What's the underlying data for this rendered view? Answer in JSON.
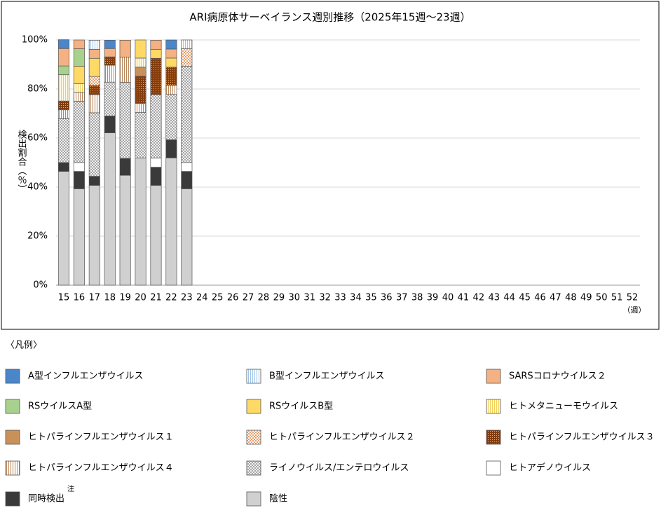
{
  "chart_data": {
    "type": "stacked_bar",
    "title": "ARI病原体サーベイランス週別推移（2025年15週～23週）",
    "y_label": "検出割合（％）",
    "x_unit": "（週）",
    "legend_title": "〈凡例〉",
    "legend_note": "注",
    "categories": [
      "15",
      "16",
      "17",
      "18",
      "19",
      "20",
      "21",
      "22",
      "23",
      "24",
      "25",
      "26",
      "27",
      "28",
      "29",
      "30",
      "31",
      "32",
      "33",
      "34",
      "35",
      "36",
      "37",
      "38",
      "39",
      "40",
      "41",
      "42",
      "43",
      "44",
      "45",
      "46",
      "47",
      "48",
      "49",
      "50",
      "51",
      "52"
    ],
    "ylim": [
      0,
      100
    ],
    "yticks": [
      {
        "value": 0,
        "label": "0%"
      },
      {
        "value": 20,
        "label": "20%"
      },
      {
        "value": 40,
        "label": "40%"
      },
      {
        "value": 60,
        "label": "60%"
      },
      {
        "value": 80,
        "label": "80%"
      },
      {
        "value": 100,
        "label": "100%"
      }
    ],
    "grid": true,
    "series": [
      {
        "name": "A型インフルエンザウイルス",
        "color": "#4a86c8",
        "pattern": "solid",
        "values": [
          3.6,
          null,
          null,
          3.4,
          null,
          null,
          null,
          3.7,
          null,
          null,
          null,
          null,
          null,
          null,
          null,
          null,
          null,
          null,
          null,
          null,
          null,
          null,
          null,
          null,
          null,
          null,
          null,
          null,
          null,
          null,
          null,
          null,
          null,
          null,
          null,
          null,
          null,
          null
        ]
      },
      {
        "name": "B型インフルエンザウイルス",
        "color": "#ffffff",
        "pattern": "vlines",
        "pattern_color": "#9dc3e6",
        "values": [
          null,
          null,
          3.7,
          null,
          null,
          null,
          null,
          null,
          3.6,
          null,
          null,
          null,
          null,
          null,
          null,
          null,
          null,
          null,
          null,
          null,
          null,
          null,
          null,
          null,
          null,
          null,
          null,
          null,
          null,
          null,
          null,
          null,
          null,
          null,
          null,
          null,
          null,
          null
        ]
      },
      {
        "name": "SARSコロナウイルス２",
        "color": "#f4b183",
        "pattern": "solid",
        "values": [
          7.1,
          3.6,
          3.7,
          3.4,
          6.9,
          null,
          3.7,
          3.7,
          null,
          null,
          null,
          null,
          null,
          null,
          null,
          null,
          null,
          null,
          null,
          null,
          null,
          null,
          null,
          null,
          null,
          null,
          null,
          null,
          null,
          null,
          null,
          null,
          null,
          null,
          null,
          null,
          null,
          null
        ]
      },
      {
        "name": "RSウイルスA型",
        "color": "#a9d18e",
        "pattern": "solid",
        "values": [
          3.6,
          7.1,
          null,
          null,
          null,
          null,
          null,
          null,
          null,
          null,
          null,
          null,
          null,
          null,
          null,
          null,
          null,
          null,
          null,
          null,
          null,
          null,
          null,
          null,
          null,
          null,
          null,
          null,
          null,
          null,
          null,
          null,
          null,
          null,
          null,
          null,
          null,
          null
        ]
      },
      {
        "name": "RSウイルスB型",
        "color": "#ffd966",
        "pattern": "solid",
        "values": [
          null,
          7.1,
          7.4,
          null,
          null,
          7.4,
          3.7,
          3.7,
          null,
          null,
          null,
          null,
          null,
          null,
          null,
          null,
          null,
          null,
          null,
          null,
          null,
          null,
          null,
          null,
          null,
          null,
          null,
          null,
          null,
          null,
          null,
          null,
          null,
          null,
          null,
          null,
          null,
          null
        ]
      },
      {
        "name": "ヒトメタニューモウイルス",
        "color": "#fff8dc",
        "pattern": "vlines",
        "pattern_color": "#f2cf5b",
        "values": [
          10.7,
          3.6,
          null,
          null,
          null,
          3.7,
          null,
          null,
          null,
          null,
          null,
          null,
          null,
          null,
          null,
          null,
          null,
          null,
          null,
          null,
          null,
          null,
          null,
          null,
          null,
          null,
          null,
          null,
          null,
          null,
          null,
          null,
          null,
          null,
          null,
          null,
          null,
          null
        ]
      },
      {
        "name": "ヒトパラインフルエンザウイルス１",
        "color": "#c9915a",
        "pattern": "solid",
        "values": [
          null,
          null,
          null,
          null,
          null,
          3.7,
          null,
          null,
          null,
          null,
          null,
          null,
          null,
          null,
          null,
          null,
          null,
          null,
          null,
          null,
          null,
          null,
          null,
          null,
          null,
          null,
          null,
          null,
          null,
          null,
          null,
          null,
          null,
          null,
          null,
          null,
          null,
          null
        ]
      },
      {
        "name": "ヒトパラインフルエンザウイルス２",
        "color": "#ffffff",
        "pattern": "checker",
        "pattern_color": "#e8a070",
        "values": [
          null,
          null,
          3.7,
          null,
          null,
          null,
          null,
          null,
          7.1,
          null,
          null,
          null,
          null,
          null,
          null,
          null,
          null,
          null,
          null,
          null,
          null,
          null,
          null,
          null,
          null,
          null,
          null,
          null,
          null,
          null,
          null,
          null,
          null,
          null,
          null,
          null,
          null,
          null
        ]
      },
      {
        "name": "ヒトパラインフルエンザウイルス３",
        "color": "#843c0c",
        "pattern": "dots",
        "pattern_color": "#f4a460",
        "values": [
          3.6,
          null,
          3.7,
          3.4,
          null,
          11.1,
          14.8,
          7.4,
          null,
          null,
          null,
          null,
          null,
          null,
          null,
          null,
          null,
          null,
          null,
          null,
          null,
          null,
          null,
          null,
          null,
          null,
          null,
          null,
          null,
          null,
          null,
          null,
          null,
          null,
          null,
          null,
          null,
          null
        ]
      },
      {
        "name": "ヒトパラインフルエンザウイルス４",
        "color": "#ffffff",
        "pattern": "vlines",
        "pattern_color": "#b8865b",
        "values": [
          3.6,
          3.6,
          7.4,
          6.9,
          10.3,
          3.7,
          null,
          3.7,
          null,
          null,
          null,
          null,
          null,
          null,
          null,
          null,
          null,
          null,
          null,
          null,
          null,
          null,
          null,
          null,
          null,
          null,
          null,
          null,
          null,
          null,
          null,
          null,
          null,
          null,
          null,
          null,
          null,
          null
        ]
      },
      {
        "name": "ライノウイルス/エンテロウイルス",
        "color": "#ffffff",
        "pattern": "cross",
        "pattern_color": "#888888",
        "values": [
          17.9,
          25,
          25.9,
          13.8,
          31.0,
          18.5,
          25.9,
          18.5,
          39.3,
          null,
          null,
          null,
          null,
          null,
          null,
          null,
          null,
          null,
          null,
          null,
          null,
          null,
          null,
          null,
          null,
          null,
          null,
          null,
          null,
          null,
          null,
          null,
          null,
          null,
          null,
          null,
          null,
          null
        ]
      },
      {
        "name": "ヒトアデノウイルス",
        "color": "#ffffff",
        "pattern": "solid",
        "values": [
          null,
          3.6,
          null,
          null,
          null,
          null,
          3.7,
          null,
          3.6,
          null,
          null,
          null,
          null,
          null,
          null,
          null,
          null,
          null,
          null,
          null,
          null,
          null,
          null,
          null,
          null,
          null,
          null,
          null,
          null,
          null,
          null,
          null,
          null,
          null,
          null,
          null,
          null,
          null
        ]
      },
      {
        "name": "同時検出",
        "color": "#3a3a3a",
        "pattern": "solid",
        "values": [
          3.6,
          7.1,
          3.7,
          6.9,
          6.9,
          null,
          7.4,
          7.4,
          7.1,
          null,
          null,
          null,
          null,
          null,
          null,
          null,
          null,
          null,
          null,
          null,
          null,
          null,
          null,
          null,
          null,
          null,
          null,
          null,
          null,
          null,
          null,
          null,
          null,
          null,
          null,
          null,
          null,
          null
        ]
      },
      {
        "name": "陰性",
        "color": "#d0d0d0",
        "pattern": "solid",
        "values": [
          46.4,
          39.3,
          40.7,
          62.1,
          44.8,
          51.9,
          40.7,
          51.9,
          39.3,
          null,
          null,
          null,
          null,
          null,
          null,
          null,
          null,
          null,
          null,
          null,
          null,
          null,
          null,
          null,
          null,
          null,
          null,
          null,
          null,
          null,
          null,
          null,
          null,
          null,
          null,
          null,
          null,
          null
        ]
      }
    ]
  }
}
